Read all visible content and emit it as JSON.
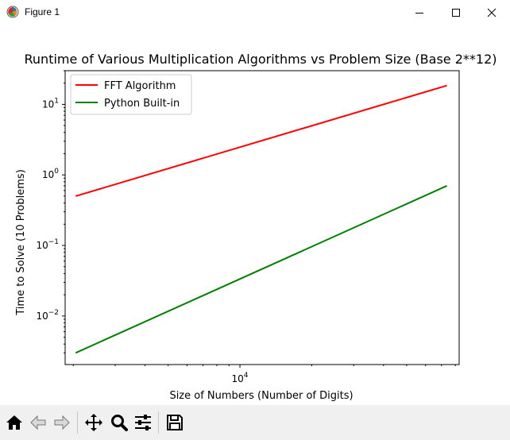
{
  "window": {
    "title": "Figure 1"
  },
  "titlebar_buttons": [
    "minimize-icon",
    "maximize-icon",
    "close-icon"
  ],
  "toolbar": {
    "icons": [
      "home-icon",
      "back-icon",
      "forward-icon",
      "pan-icon",
      "zoom-icon",
      "configure-subplots-icon",
      "save-icon"
    ]
  },
  "chart_data": {
    "type": "line",
    "title": "Runtime of Various Multiplication Algorithms vs Problem Size (Base 2**12)",
    "xlabel": "Size of Numbers (Number of Digits)",
    "ylabel": "Time to Solve (10 Problems)",
    "xscale": "log",
    "yscale": "log",
    "xlim": [
      1850,
      83000
    ],
    "ylim": [
      0.00205,
      30
    ],
    "x_ticks": [
      {
        "value": 10000,
        "label": "10^4",
        "base": "10",
        "exp": "4"
      }
    ],
    "y_ticks": [
      {
        "value": 0.01,
        "label": "10^-2",
        "base": "10",
        "exp": "−2"
      },
      {
        "value": 0.1,
        "label": "10^-1",
        "base": "10",
        "exp": "−1"
      },
      {
        "value": 1,
        "label": "10^0",
        "base": "10",
        "exp": "0"
      },
      {
        "value": 10,
        "label": "10^1",
        "base": "10",
        "exp": "1"
      }
    ],
    "grid": false,
    "legend_position": "upper-left",
    "series": [
      {
        "name": "FFT Algorithm",
        "color": "#ff0000",
        "x": [
          2048,
          73728
        ],
        "y": [
          0.5,
          18.5
        ]
      },
      {
        "name": "Python Built-in",
        "color": "#008000",
        "x": [
          2048,
          73728
        ],
        "y": [
          0.003,
          0.7
        ]
      }
    ]
  }
}
